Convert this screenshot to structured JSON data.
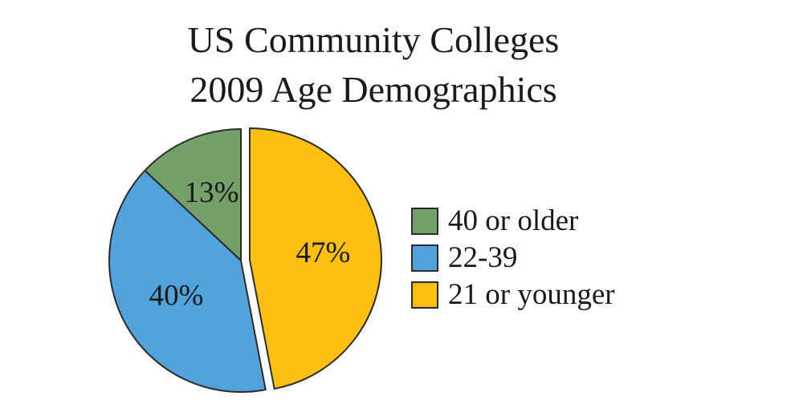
{
  "chart_data": {
    "type": "pie",
    "title": [
      "US Community Colleges",
      "2009 Age Demographics"
    ],
    "slices": [
      {
        "label": "21 or younger",
        "value": 47,
        "display": "47%",
        "color": "#FDC010",
        "exploded": true
      },
      {
        "label": "22-39",
        "value": 40,
        "display": "40%",
        "color": "#52A3DB"
      },
      {
        "label": "40 or older",
        "value": 13,
        "display": "13%",
        "color": "#74A069"
      }
    ],
    "legend": {
      "placement": "right",
      "items": [
        {
          "label": "40 or older",
          "color": "#74A069"
        },
        {
          "label": "22-39",
          "color": "#52A3DB"
        },
        {
          "label": "21 or younger",
          "color": "#FDC010"
        }
      ]
    }
  }
}
